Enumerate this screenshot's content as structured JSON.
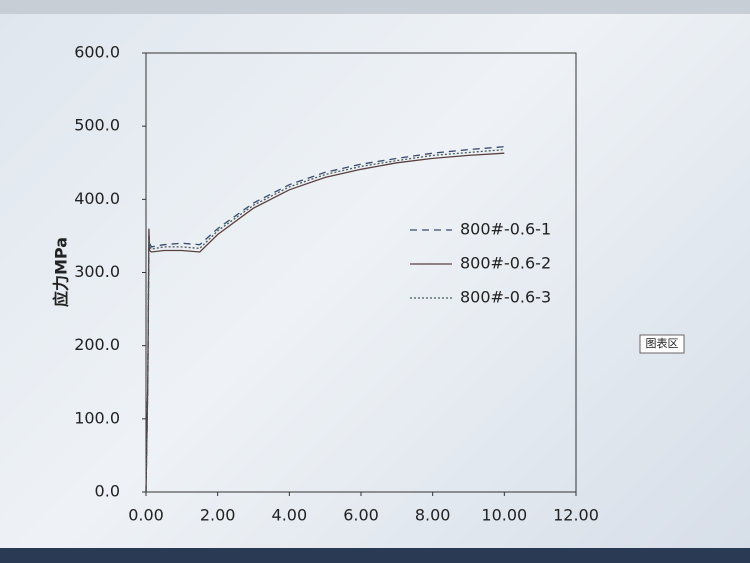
{
  "chart_data": {
    "type": "line",
    "y_label": "应力MPa",
    "x": [
      0,
      0.05,
      0.08,
      0.1,
      0.15,
      0.5,
      1.0,
      1.5,
      2,
      3,
      4,
      5,
      6,
      7,
      8,
      9,
      10
    ],
    "series": [
      {
        "name": "800#-0.6-1",
        "color": "#3a4a6a",
        "style": "dashed",
        "values": [
          0,
          150,
          350,
          340,
          335,
          338,
          340,
          338,
          360,
          395,
          420,
          437,
          448,
          456,
          463,
          468,
          472
        ]
      },
      {
        "name": "800#-0.6-2",
        "color": "#5a4040",
        "style": "solid",
        "values": [
          0,
          150,
          360,
          330,
          328,
          330,
          330,
          328,
          352,
          388,
          413,
          430,
          441,
          450,
          456,
          460,
          463
        ]
      },
      {
        "name": "800#-0.6-3",
        "color": "#4a5a5a",
        "style": "dotted",
        "values": [
          0,
          150,
          345,
          335,
          332,
          335,
          335,
          333,
          357,
          392,
          417,
          434,
          445,
          453,
          460,
          464,
          468
        ]
      }
    ],
    "xlim": [
      0,
      12
    ],
    "xticks": [
      {
        "value": 0,
        "label": "0.00"
      },
      {
        "value": 2,
        "label": "2.00"
      },
      {
        "value": 4,
        "label": "4.00"
      },
      {
        "value": 6,
        "label": "6.00"
      },
      {
        "value": 8,
        "label": "8.00"
      },
      {
        "value": 10,
        "label": "10.00"
      },
      {
        "value": 12,
        "label": "12.00"
      }
    ],
    "ylim": [
      0,
      600
    ],
    "yticks": [
      {
        "value": 0,
        "label": "0.0"
      },
      {
        "value": 100,
        "label": "100.0"
      },
      {
        "value": 200,
        "label": "200.0"
      },
      {
        "value": 300,
        "label": "300.0"
      },
      {
        "value": 400,
        "label": "400.0"
      },
      {
        "value": 500,
        "label": "500.0"
      },
      {
        "value": 600,
        "label": "600.0"
      }
    ],
    "tooltip": "图表区"
  }
}
